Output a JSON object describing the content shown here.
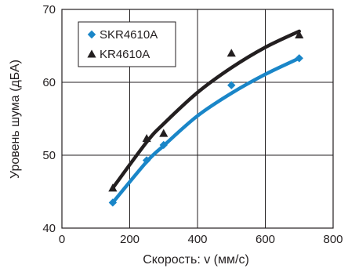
{
  "chart_data": {
    "type": "scatter",
    "xlabel": "Скорость: v (мм/с)",
    "ylabel": "Уровень шума (дБА)",
    "xlim": [
      0,
      800
    ],
    "ylim": [
      40,
      70
    ],
    "xticks": [
      "0",
      "200",
      "400",
      "600",
      "800"
    ],
    "yticks": [
      "40",
      "50",
      "60",
      "70"
    ],
    "grid": true,
    "legend_position": "top-left",
    "series": [
      {
        "name": "SKR4610A",
        "marker": "diamond",
        "color": "#1a86c8",
        "points": [
          [
            150,
            43.5
          ],
          [
            250,
            49.3
          ],
          [
            300,
            51.4
          ],
          [
            500,
            59.6
          ],
          [
            700,
            63.3
          ]
        ],
        "fit": [
          [
            150,
            43.5
          ],
          [
            250,
            49.1
          ],
          [
            300,
            51.3
          ],
          [
            400,
            55.4
          ],
          [
            500,
            58.5
          ],
          [
            600,
            61.1
          ],
          [
            700,
            63.3
          ]
        ]
      },
      {
        "name": "KR4610A",
        "marker": "triangle",
        "color": "#231f20",
        "points": [
          [
            150,
            45.5
          ],
          [
            250,
            52.3
          ],
          [
            300,
            53.0
          ],
          [
            500,
            64.0
          ],
          [
            700,
            66.5
          ]
        ],
        "fit": [
          [
            150,
            45.5
          ],
          [
            250,
            51.8
          ],
          [
            300,
            54.3
          ],
          [
            400,
            58.6
          ],
          [
            500,
            62.0
          ],
          [
            600,
            64.8
          ],
          [
            700,
            67.0
          ]
        ]
      }
    ]
  }
}
